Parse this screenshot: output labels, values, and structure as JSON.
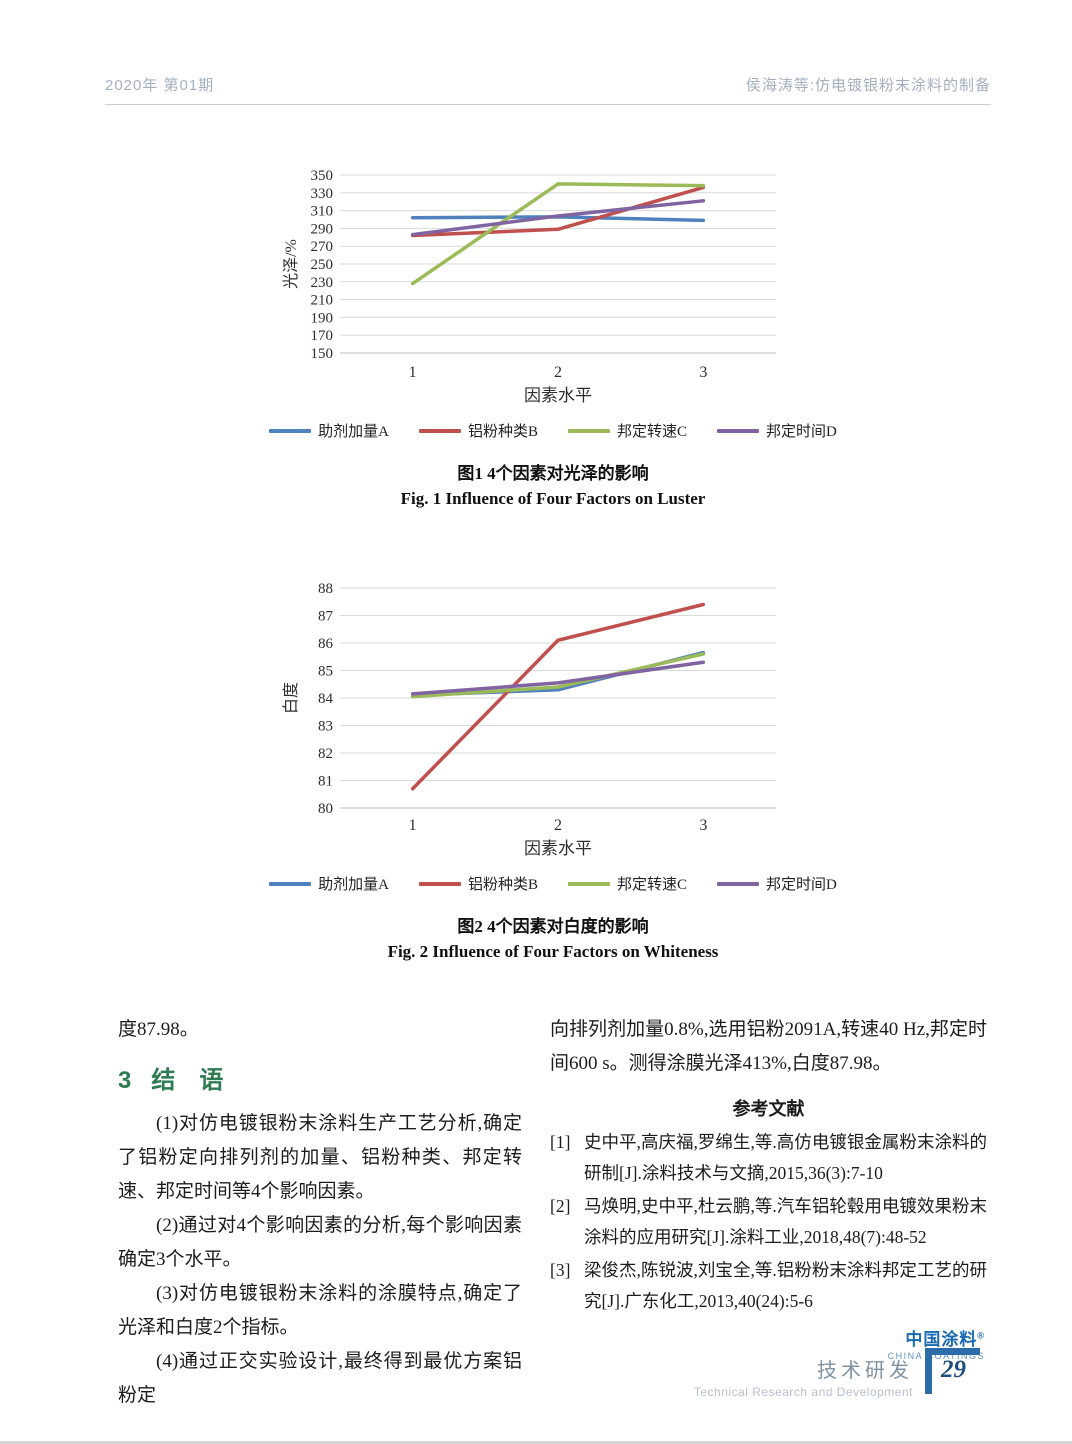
{
  "header": {
    "issue": "2020年 第01期",
    "running_title": "侯海涛等:仿电镀银粉末涂料的制备"
  },
  "figures": {
    "fig1": {
      "caption_zh": "图1  4个因素对光泽的影响",
      "caption_en": "Fig. 1   Influence of Four Factors on Luster"
    },
    "fig2": {
      "caption_zh": "图2  4个因素对白度的影响",
      "caption_en": "Fig. 2   Influence of Four Factors on Whiteness"
    }
  },
  "chart_data": [
    {
      "type": "line",
      "title": "",
      "xlabel": "因素水平",
      "ylabel": "光泽/%",
      "categories": [
        "1",
        "2",
        "3"
      ],
      "ylim": [
        150,
        350
      ],
      "ytick_step": 20,
      "grid": true,
      "legend_position": "bottom",
      "series": [
        {
          "name": "助剂加量A",
          "color": "#4f81bd",
          "values": [
            302,
            303,
            299
          ]
        },
        {
          "name": "铝粉种类B",
          "color": "#c0504d",
          "values": [
            282,
            289,
            336
          ]
        },
        {
          "name": "邦定转速C",
          "color": "#9bbb59",
          "values": [
            228,
            340,
            338
          ]
        },
        {
          "name": "邦定时间D",
          "color": "#8064a2",
          "values": [
            283,
            304,
            321
          ]
        }
      ]
    },
    {
      "type": "line",
      "title": "",
      "xlabel": "因素水平",
      "ylabel": "白度",
      "categories": [
        "1",
        "2",
        "3"
      ],
      "ylim": [
        80,
        88
      ],
      "ytick_step": 1,
      "grid": true,
      "legend_position": "bottom",
      "series": [
        {
          "name": "助剂加量A",
          "color": "#4f81bd",
          "values": [
            84.1,
            84.3,
            85.65
          ]
        },
        {
          "name": "铝粉种类B",
          "color": "#c0504d",
          "values": [
            80.7,
            86.1,
            87.4
          ]
        },
        {
          "name": "邦定转速C",
          "color": "#9bbb59",
          "values": [
            84.05,
            84.4,
            85.6
          ]
        },
        {
          "name": "邦定时间D",
          "color": "#8064a2",
          "values": [
            84.15,
            84.55,
            85.3
          ]
        }
      ]
    }
  ],
  "body": {
    "left": {
      "lead": "度87.98。",
      "section_no": "3",
      "section_title": "结　语",
      "paragraphs": [
        "(1)对仿电镀银粉末涂料生产工艺分析,确定了铝粉定向排列剂的加量、铝粉种类、邦定转速、邦定时间等4个影响因素。",
        "(2)通过对4个影响因素的分析,每个影响因素确定3个水平。",
        "(3)对仿电镀银粉末涂料的涂膜特点,确定了光泽和白度2个指标。",
        "(4)通过正交实验设计,最终得到最优方案铝粉定"
      ]
    },
    "right": {
      "continuation": "向排列剂加量0.8%,选用铝粉2091A,转速40 Hz,邦定时间600 s。测得涂膜光泽413%,白度87.98。",
      "ref_heading": "参考文献",
      "references": [
        {
          "no": "[1]",
          "text": "史中平,高庆福,罗绵生,等.高仿电镀银金属粉末涂料的研制[J].涂料技术与文摘,2015,36(3):7-10"
        },
        {
          "no": "[2]",
          "text": "马焕明,史中平,杜云鹏,等.汽车铝轮毂用电镀效果粉末涂料的应用研究[J].涂料工业,2018,48(7):48-52"
        },
        {
          "no": "[3]",
          "text": "梁俊杰,陈锐波,刘宝全,等.铝粉粉末涂料邦定工艺的研究[J].广东化工,2013,40(24):5-6"
        }
      ]
    }
  },
  "logo": {
    "zh": "中国涂料",
    "reg": "®",
    "en": "CHINA COATINGS"
  },
  "footer": {
    "section_zh": "技术研发",
    "section_en": "Technical Research and Development",
    "page_number": "29"
  }
}
